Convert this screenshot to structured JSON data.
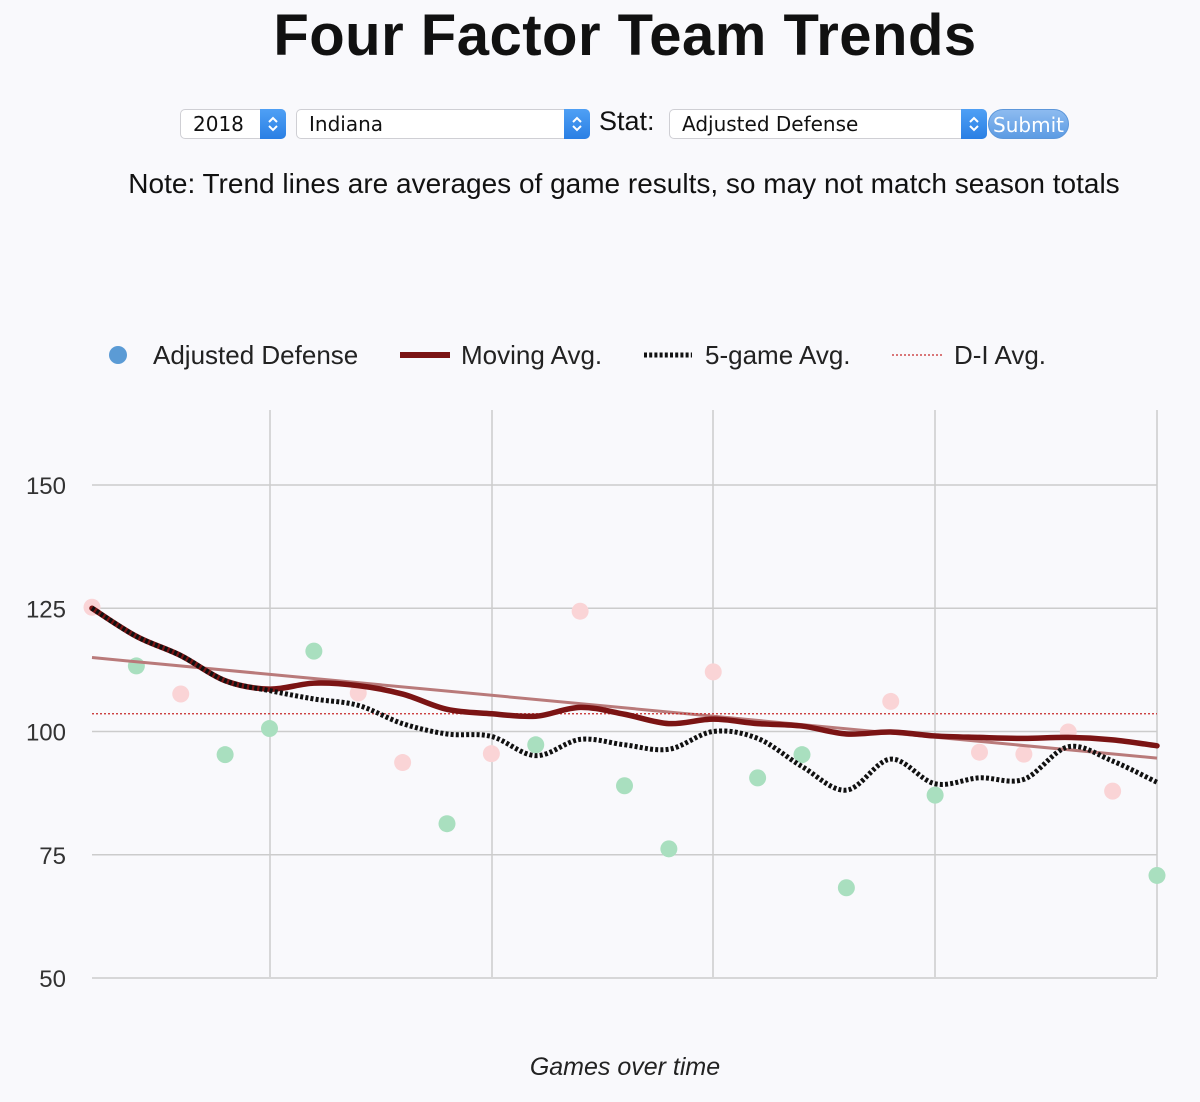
{
  "page": {
    "title": "Four Factor Team Trends"
  },
  "controls": {
    "year": "2018",
    "team": "Indiana",
    "stat_label": "Stat:",
    "stat": "Adjusted Defense",
    "submit_label": "Submit"
  },
  "note": "Note: Trend lines are averages of game results, so may not match season totals",
  "colors": {
    "good": "#a9dfbf",
    "bad": "#fad4d6",
    "legend_dot": "#5b9bd5",
    "moving_avg": "#7b1414",
    "five_game": "#111111",
    "di_avg": "#c62828",
    "linear_trend": "#b97a7a",
    "grid": "#cccccc"
  },
  "chart_data": {
    "type": "scatter",
    "xlabel": "Games over time",
    "ylabel": "",
    "ylim": [
      50,
      150
    ],
    "yticks": [
      50,
      75,
      100,
      125,
      150
    ],
    "x": [
      1,
      2,
      3,
      4,
      5,
      6,
      7,
      8,
      9,
      10,
      11,
      12,
      13,
      14,
      15,
      16,
      17,
      18,
      19,
      20,
      21,
      22,
      23,
      24,
      25
    ],
    "legend": [
      "Adjusted Defense",
      "Moving Avg.",
      "5-game Avg.",
      "D-I Avg."
    ],
    "legend_position": "top",
    "grid": true,
    "series": [
      {
        "name": "Adjusted Defense",
        "values": [
          125.2,
          113.3,
          107.6,
          95.3,
          100.6,
          116.3,
          107.8,
          93.7,
          81.3,
          95.5,
          97.3,
          124.4,
          89.0,
          76.2,
          112.1,
          90.6,
          95.3,
          68.3,
          106.1,
          87.1,
          95.8,
          95.4,
          99.9,
          87.9,
          70.8
        ],
        "status": [
          "bad",
          "good",
          "bad",
          "good",
          "good",
          "good",
          "bad",
          "bad",
          "good",
          "bad",
          "good",
          "bad",
          "good",
          "good",
          "bad",
          "good",
          "good",
          "good",
          "bad",
          "good",
          "bad",
          "bad",
          "bad",
          "bad",
          "good"
        ]
      },
      {
        "name": "Moving Avg.",
        "values": [
          125.0,
          119.3,
          115.4,
          110.3,
          108.6,
          109.8,
          109.3,
          107.6,
          104.5,
          103.6,
          103.1,
          104.9,
          103.5,
          101.6,
          102.5,
          101.6,
          101.1,
          99.5,
          99.9,
          99.1,
          98.8,
          98.6,
          98.8,
          98.3,
          97.1
        ]
      },
      {
        "name": "5-game Avg.",
        "values": [
          125.0,
          119.3,
          115.4,
          110.3,
          108.3,
          106.6,
          105.3,
          101.6,
          99.5,
          99.0,
          95.1,
          98.4,
          97.3,
          96.4,
          100.0,
          98.6,
          92.9,
          88.1,
          94.4,
          89.4,
          90.6,
          90.3,
          96.9,
          94.0,
          89.7
        ]
      },
      {
        "name": "D-I Avg.",
        "values": [
          103.6
        ]
      },
      {
        "name": "",
        "values": [
          115.0,
          94.6
        ]
      }
    ]
  }
}
